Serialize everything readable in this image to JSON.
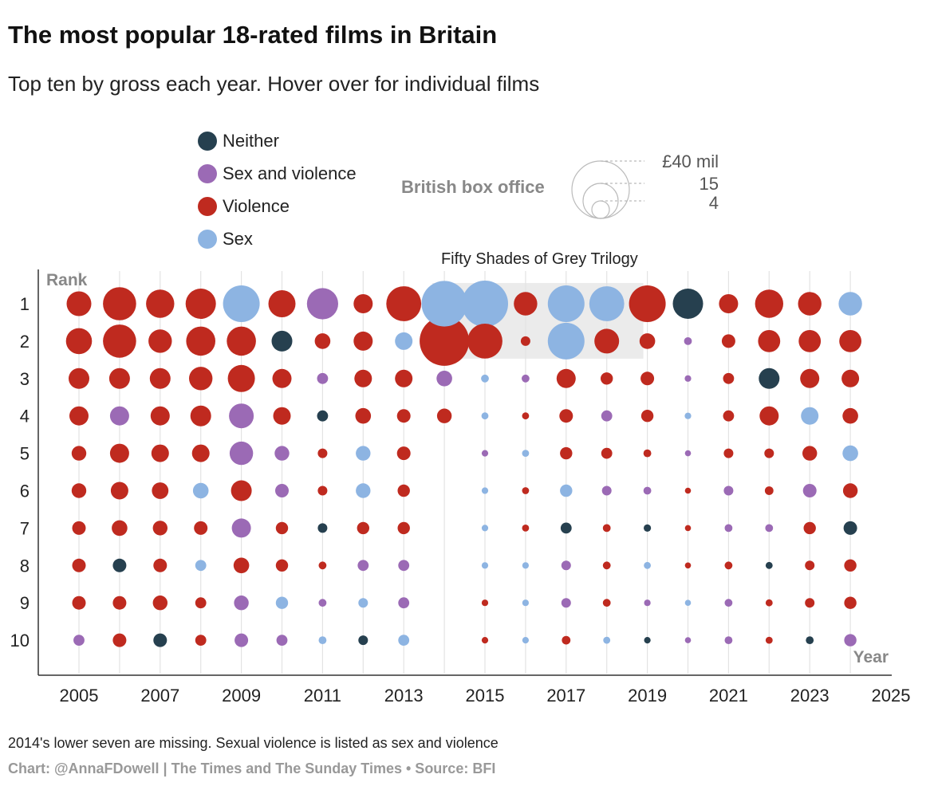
{
  "title": "The most popular 18-rated films in Britain",
  "subtitle": "Top ten by gross each year. Hover over for individual films",
  "legend": [
    {
      "label": "Neither",
      "color": "#26404f"
    },
    {
      "label": "Sex and violence",
      "color": "#9b6ab5"
    },
    {
      "label": "Violence",
      "color": "#bf2a1f"
    },
    {
      "label": "Sex",
      "color": "#8db4e2"
    }
  ],
  "size_legend": {
    "title": "British box office",
    "labels": [
      "£40 mil",
      "15",
      "4"
    ]
  },
  "annotation": "Fifty Shades of Grey Trilogy",
  "footnote": "2014's lower seven are missing. Sexual violence is listed as sex and violence",
  "credit": "Chart: @AnnaFDowell | The Times and The Sunday Times • Source: BFI",
  "chart_data": {
    "type": "scatter",
    "title": "The most popular 18-rated films in Britain",
    "xlabel": "Year",
    "ylabel": "Rank",
    "xlim": [
      2004.5,
      2025
    ],
    "x_ticks": [
      2005,
      2007,
      2009,
      2011,
      2013,
      2015,
      2017,
      2019,
      2021,
      2023,
      2025
    ],
    "y_ticks": [
      1,
      2,
      3,
      4,
      5,
      6,
      7,
      8,
      9,
      10
    ],
    "highlight": {
      "label": "Fifty Shades of Grey Trilogy",
      "x_range": [
        2014,
        2019
      ],
      "rank_range": [
        1,
        2
      ]
    },
    "size_unit": "British box office (£ mil)",
    "category_colors": {
      "N": "#26404f",
      "SV": "#9b6ab5",
      "V": "#bf2a1f",
      "S": "#8db4e2"
    },
    "category_names": {
      "N": "Neither",
      "SV": "Sex and violence",
      "V": "Violence",
      "S": "Sex"
    },
    "years": [
      {
        "year": 2005,
        "films": [
          [
            "V",
            10
          ],
          [
            "V",
            11
          ],
          [
            "V",
            7
          ],
          [
            "V",
            6
          ],
          [
            "V",
            3.5
          ],
          [
            "V",
            3.5
          ],
          [
            "V",
            3
          ],
          [
            "V",
            3
          ],
          [
            "V",
            3
          ],
          [
            "SV",
            2
          ]
        ]
      },
      {
        "year": 2006,
        "films": [
          [
            "V",
            18
          ],
          [
            "V",
            18
          ],
          [
            "V",
            7
          ],
          [
            "SV",
            6
          ],
          [
            "V",
            6
          ],
          [
            "V",
            5
          ],
          [
            "V",
            4
          ],
          [
            "N",
            3
          ],
          [
            "V",
            3
          ],
          [
            "V",
            3
          ]
        ]
      },
      {
        "year": 2007,
        "films": [
          [
            "V",
            13
          ],
          [
            "V",
            9
          ],
          [
            "V",
            7
          ],
          [
            "V",
            6
          ],
          [
            "V",
            5
          ],
          [
            "V",
            4.5
          ],
          [
            "V",
            3.5
          ],
          [
            "V",
            3
          ],
          [
            "V",
            3.5
          ],
          [
            "N",
            3
          ]
        ]
      },
      {
        "year": 2008,
        "films": [
          [
            "V",
            15
          ],
          [
            "V",
            14
          ],
          [
            "V",
            9
          ],
          [
            "V",
            7
          ],
          [
            "V",
            5
          ],
          [
            "S",
            4
          ],
          [
            "V",
            3
          ],
          [
            "S",
            2
          ],
          [
            "V",
            2
          ],
          [
            "V",
            2
          ]
        ]
      },
      {
        "year": 2009,
        "films": [
          [
            "S",
            22
          ],
          [
            "V",
            14
          ],
          [
            "V",
            12
          ],
          [
            "SV",
            10
          ],
          [
            "SV",
            9
          ],
          [
            "V",
            7
          ],
          [
            "SV",
            6
          ],
          [
            "V",
            4
          ],
          [
            "SV",
            3.5
          ],
          [
            "SV",
            3
          ]
        ]
      },
      {
        "year": 2010,
        "films": [
          [
            "V",
            12
          ],
          [
            "N",
            7
          ],
          [
            "V",
            6
          ],
          [
            "V",
            5
          ],
          [
            "SV",
            3.5
          ],
          [
            "SV",
            3
          ],
          [
            "V",
            2.5
          ],
          [
            "V",
            2.5
          ],
          [
            "S",
            2.5
          ],
          [
            "SV",
            2
          ]
        ]
      },
      {
        "year": 2011,
        "films": [
          [
            "SV",
            16
          ],
          [
            "V",
            4
          ],
          [
            "SV",
            2
          ],
          [
            "N",
            2
          ],
          [
            "V",
            1.5
          ],
          [
            "V",
            1.5
          ],
          [
            "N",
            1.5
          ],
          [
            "V",
            1
          ],
          [
            "SV",
            1
          ],
          [
            "S",
            1
          ]
        ]
      },
      {
        "year": 2012,
        "films": [
          [
            "V",
            6
          ],
          [
            "V",
            6
          ],
          [
            "V",
            5
          ],
          [
            "V",
            4
          ],
          [
            "S",
            3.5
          ],
          [
            "S",
            3.5
          ],
          [
            "V",
            2.5
          ],
          [
            "SV",
            2
          ],
          [
            "S",
            1.5
          ],
          [
            "N",
            1.5
          ]
        ]
      },
      {
        "year": 2013,
        "films": [
          [
            "V",
            20
          ],
          [
            "S",
            5
          ],
          [
            "V",
            5
          ],
          [
            "V",
            3
          ],
          [
            "V",
            3
          ],
          [
            "V",
            2.5
          ],
          [
            "V",
            2.5
          ],
          [
            "SV",
            2
          ],
          [
            "SV",
            2
          ],
          [
            "S",
            2
          ]
        ]
      },
      {
        "year": 2014,
        "films": [
          [
            "S",
            34
          ],
          [
            "V",
            40
          ],
          [
            "SV",
            4
          ],
          [
            "V",
            3.5
          ]
        ]
      },
      {
        "year": 2015,
        "films": [
          [
            "S",
            35
          ],
          [
            "V",
            20
          ],
          [
            "S",
            1
          ],
          [
            "S",
            0.8
          ],
          [
            "SV",
            0.7
          ],
          [
            "S",
            0.7
          ],
          [
            "S",
            0.7
          ],
          [
            "S",
            0.7
          ],
          [
            "V",
            0.7
          ],
          [
            "V",
            0.7
          ]
        ]
      },
      {
        "year": 2016,
        "films": [
          [
            "V",
            9
          ],
          [
            "V",
            1.5
          ],
          [
            "SV",
            1
          ],
          [
            "V",
            0.8
          ],
          [
            "S",
            0.8
          ],
          [
            "V",
            0.8
          ],
          [
            "V",
            0.8
          ],
          [
            "S",
            0.7
          ],
          [
            "S",
            0.7
          ],
          [
            "S",
            0.7
          ]
        ]
      },
      {
        "year": 2017,
        "films": [
          [
            "S",
            22
          ],
          [
            "S",
            22
          ],
          [
            "V",
            6
          ],
          [
            "V",
            3
          ],
          [
            "V",
            2.5
          ],
          [
            "S",
            2.5
          ],
          [
            "N",
            2
          ],
          [
            "SV",
            1.5
          ],
          [
            "SV",
            1.5
          ],
          [
            "V",
            1.2
          ]
        ]
      },
      {
        "year": 2018,
        "films": [
          [
            "S",
            20
          ],
          [
            "V",
            10
          ],
          [
            "V",
            2.5
          ],
          [
            "SV",
            2
          ],
          [
            "V",
            2
          ],
          [
            "SV",
            1.5
          ],
          [
            "V",
            1
          ],
          [
            "V",
            1
          ],
          [
            "V",
            1
          ],
          [
            "S",
            0.8
          ]
        ]
      },
      {
        "year": 2019,
        "films": [
          [
            "V",
            22
          ],
          [
            "V",
            4
          ],
          [
            "V",
            3
          ],
          [
            "V",
            2.5
          ],
          [
            "V",
            1
          ],
          [
            "SV",
            1
          ],
          [
            "N",
            0.9
          ],
          [
            "S",
            0.8
          ],
          [
            "SV",
            0.7
          ],
          [
            "N",
            0.7
          ]
        ]
      },
      {
        "year": 2020,
        "films": [
          [
            "N",
            15
          ],
          [
            "SV",
            1
          ],
          [
            "SV",
            0.7
          ],
          [
            "S",
            0.7
          ],
          [
            "SV",
            0.6
          ],
          [
            "V",
            0.6
          ],
          [
            "V",
            0.6
          ],
          [
            "V",
            0.6
          ],
          [
            "S",
            0.6
          ],
          [
            "SV",
            0.6
          ]
        ]
      },
      {
        "year": 2021,
        "films": [
          [
            "V",
            6
          ],
          [
            "V",
            3
          ],
          [
            "V",
            2
          ],
          [
            "V",
            2
          ],
          [
            "V",
            1.5
          ],
          [
            "SV",
            1.5
          ],
          [
            "SV",
            1
          ],
          [
            "V",
            1
          ],
          [
            "SV",
            1
          ],
          [
            "SV",
            1
          ]
        ]
      },
      {
        "year": 2022,
        "films": [
          [
            "V",
            13
          ],
          [
            "V",
            8
          ],
          [
            "N",
            7
          ],
          [
            "V",
            6
          ],
          [
            "V",
            1.5
          ],
          [
            "V",
            1.2
          ],
          [
            "SV",
            1
          ],
          [
            "N",
            0.8
          ],
          [
            "V",
            0.8
          ],
          [
            "V",
            0.8
          ]
        ]
      },
      {
        "year": 2023,
        "films": [
          [
            "V",
            9
          ],
          [
            "V",
            8
          ],
          [
            "V",
            6
          ],
          [
            "S",
            5
          ],
          [
            "V",
            3.5
          ],
          [
            "SV",
            3
          ],
          [
            "V",
            2.5
          ],
          [
            "V",
            1.5
          ],
          [
            "V",
            1.5
          ],
          [
            "N",
            1
          ]
        ]
      },
      {
        "year": 2024,
        "films": [
          [
            "S",
            9
          ],
          [
            "V",
            8
          ],
          [
            "V",
            5
          ],
          [
            "V",
            4
          ],
          [
            "S",
            4
          ],
          [
            "V",
            3.5
          ],
          [
            "N",
            3
          ],
          [
            "V",
            2.5
          ],
          [
            "V",
            2.5
          ],
          [
            "SV",
            2.5
          ]
        ]
      }
    ]
  }
}
